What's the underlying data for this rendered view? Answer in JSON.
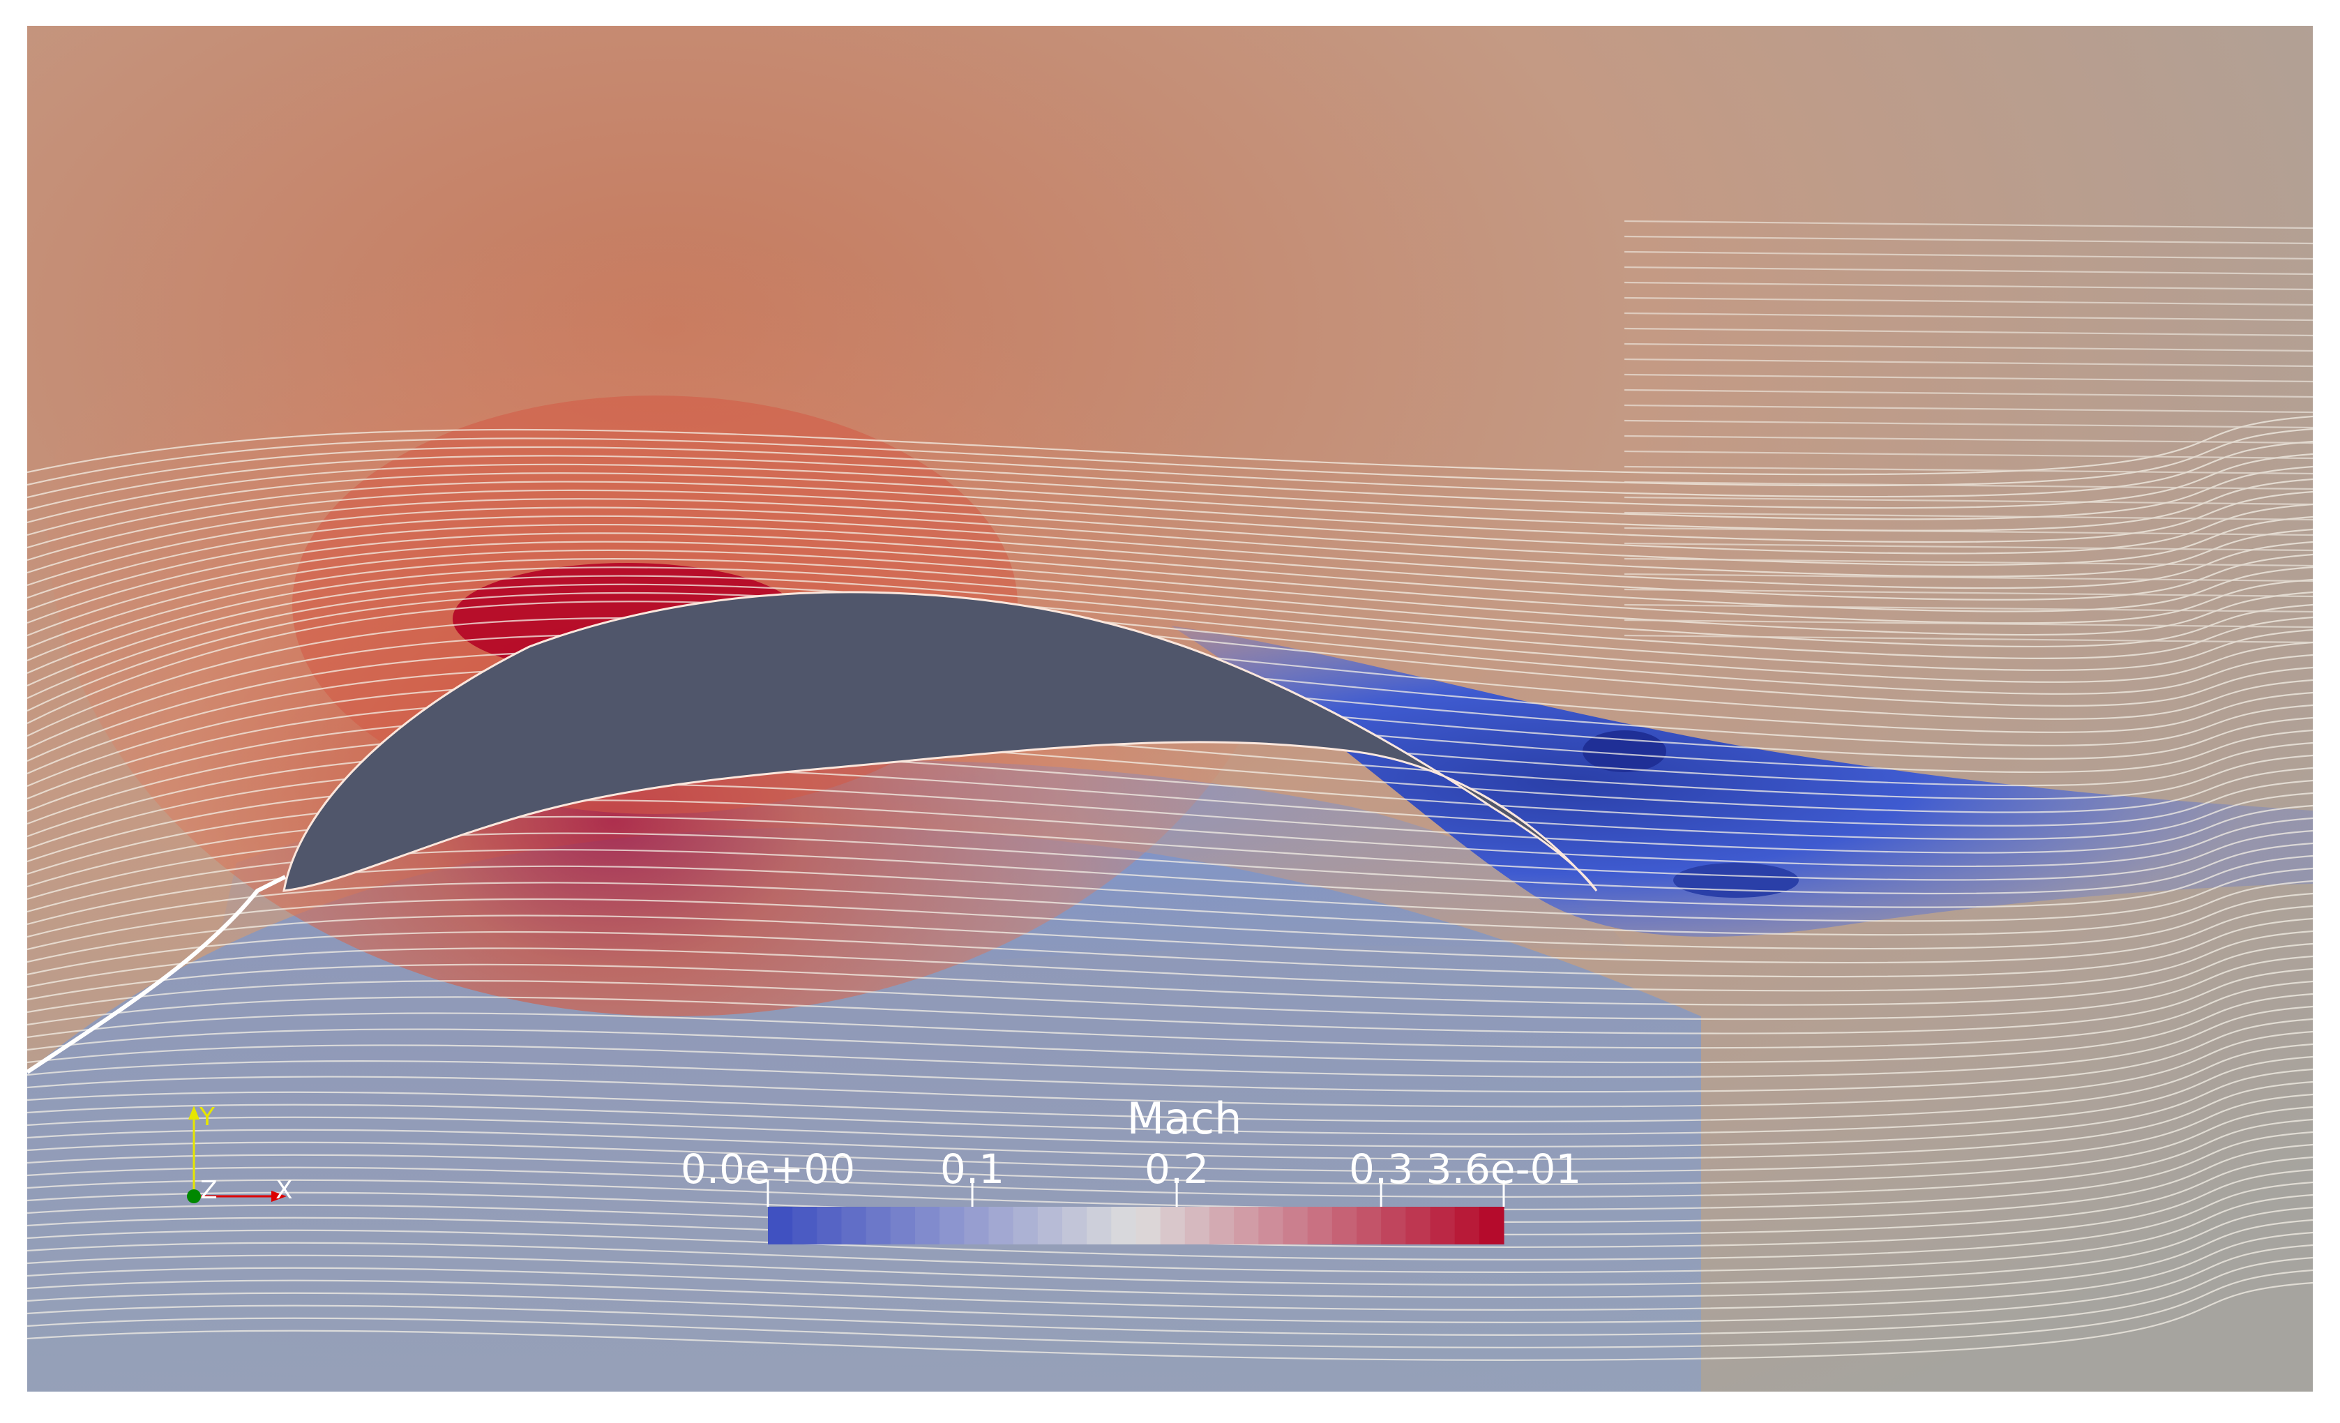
{
  "colorbar": {
    "title": "Mach",
    "ticks": [
      {
        "label": "0.0e+00",
        "value": 0.0
      },
      {
        "label": "0.1",
        "value": 0.1
      },
      {
        "label": "0.2",
        "value": 0.2
      },
      {
        "label": "0.3",
        "value": 0.3
      },
      {
        "label": "3.6e-01",
        "value": 0.36
      }
    ],
    "range": [
      0.0,
      0.36
    ],
    "colormap": "cool-to-warm",
    "low_color": "#3b4cc0",
    "mid_color": "#dddddd",
    "high_color": "#b40426"
  },
  "orientation_axes": {
    "y_label": "Y",
    "z_label": "Z",
    "x_label": "X",
    "y_color": "#e6e600",
    "z_color": "#008800",
    "x_color": "#dd0000"
  },
  "airfoil_color": "#50566b"
}
